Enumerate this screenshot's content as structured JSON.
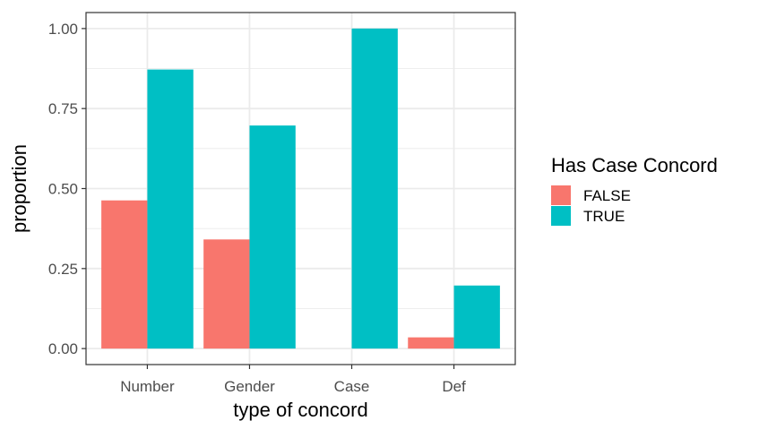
{
  "chart_data": {
    "type": "bar",
    "title": "",
    "xlabel": "type of concord",
    "ylabel": "proportion",
    "categories": [
      "Number",
      "Gender",
      "Case",
      "Def"
    ],
    "series": [
      {
        "name": "FALSE",
        "color": "#F8766D",
        "values": [
          0.463,
          0.341,
          0.0,
          0.035
        ]
      },
      {
        "name": "TRUE",
        "color": "#00BFC4",
        "values": [
          0.872,
          0.697,
          1.0,
          0.197
        ]
      }
    ],
    "ylim": [
      -0.05,
      1.05
    ],
    "yticks": [
      0.0,
      0.25,
      0.5,
      0.75,
      1.0
    ],
    "ytick_labels": [
      "0.00",
      "0.25",
      "0.50",
      "0.75",
      "1.00"
    ],
    "grid": true,
    "legend": {
      "title": "Has Case Concord",
      "position": "right"
    }
  }
}
